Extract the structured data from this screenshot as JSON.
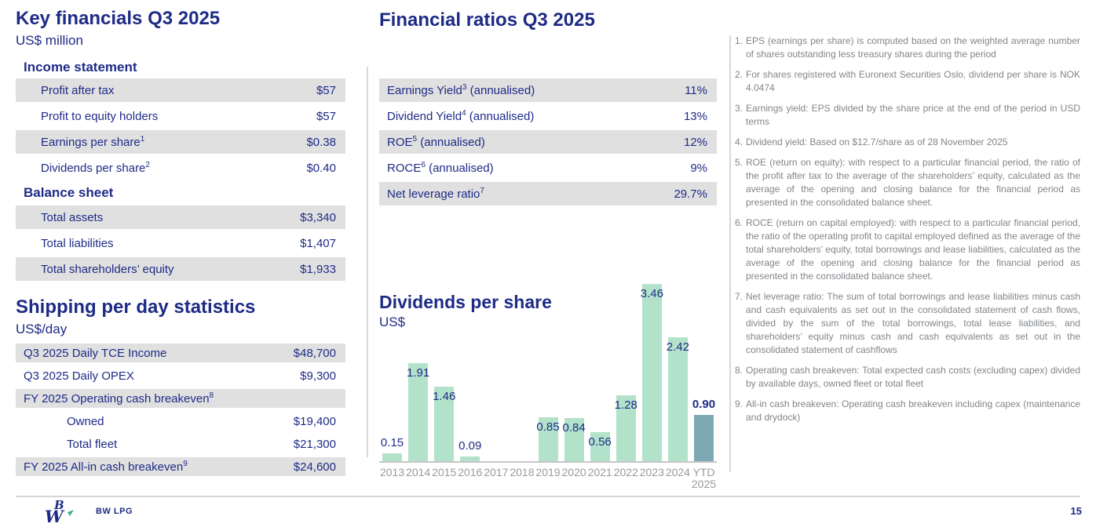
{
  "page": {
    "number": "15"
  },
  "colors": {
    "navy": "#1e2b86",
    "bar_green": "#b3e2cb",
    "bar_slate": "#7da9b2",
    "row_grey": "#e0e0e0"
  },
  "left": {
    "title": "Key financials Q3 2025",
    "unit": "US$ million",
    "sections": [
      {
        "heading": "Income statement",
        "rows": [
          {
            "label": "Profit after tax",
            "sup": "",
            "value": "$57",
            "shaded": true,
            "indent": 1
          },
          {
            "label": "Profit to equity holders",
            "sup": "",
            "value": "$57",
            "shaded": false,
            "indent": 1
          },
          {
            "label": "Earnings per share",
            "sup": "1",
            "value": "$0.38",
            "shaded": true,
            "indent": 1
          },
          {
            "label": "Dividends per share",
            "sup": "2",
            "value": "$0.40",
            "shaded": false,
            "indent": 1
          }
        ]
      },
      {
        "heading": "Balance sheet",
        "rows": [
          {
            "label": "Total assets",
            "sup": "",
            "value": "$3,340",
            "shaded": true,
            "indent": 1
          },
          {
            "label": "Total liabilities",
            "sup": "",
            "value": "$1,407",
            "shaded": false,
            "indent": 1
          },
          {
            "label": "Total shareholders’ equity",
            "sup": "",
            "value": "$1,933",
            "shaded": true,
            "indent": 1
          }
        ]
      }
    ],
    "shipping": {
      "title": "Shipping per day statistics",
      "unit": "US$/day",
      "rows": [
        {
          "label": "Q3 2025 Daily TCE Income",
          "sup": "",
          "value": "$48,700",
          "shaded": true,
          "indent": 0
        },
        {
          "label": "Q3 2025 Daily OPEX",
          "sup": "",
          "value": "$9,300",
          "shaded": false,
          "indent": 0
        },
        {
          "label": "FY 2025 Operating cash breakeven",
          "sup": "8",
          "value": "",
          "shaded": true,
          "indent": 0
        },
        {
          "label": "Owned",
          "sup": "",
          "value": "$19,400",
          "shaded": false,
          "indent": 2
        },
        {
          "label": "Total fleet",
          "sup": "",
          "value": "$21,300",
          "shaded": false,
          "indent": 2
        },
        {
          "label": "FY 2025 All-in cash breakeven",
          "sup": "9",
          "value": "$24,600",
          "shaded": true,
          "indent": 0
        }
      ]
    }
  },
  "ratios": {
    "title": "Financial ratios Q3 2025",
    "rows": [
      {
        "label": "Earnings Yield",
        "sup": "3",
        "suffix": " (annualised)",
        "value": "11%",
        "shaded": true,
        "indent": 0
      },
      {
        "label": "Dividend Yield",
        "sup": "4",
        "suffix": " (annualised)",
        "value": "13%",
        "shaded": false,
        "indent": 0
      },
      {
        "label": "ROE",
        "sup": "5",
        "suffix": " (annualised)",
        "value": "12%",
        "shaded": true,
        "indent": 0
      },
      {
        "label": "ROCE",
        "sup": "6",
        "suffix": " (annualised)",
        "value": "9%",
        "shaded": false,
        "indent": 0
      },
      {
        "label": "Net leverage ratio",
        "sup": "7",
        "suffix": "",
        "value": "29.7%",
        "shaded": true,
        "indent": 0
      }
    ]
  },
  "chart_data": {
    "type": "bar",
    "title": "Dividends per share",
    "ylabel": "US$",
    "categories": [
      "2013",
      "2014",
      "2015",
      "2016",
      "2017",
      "2018",
      "2019",
      "2020",
      "2021",
      "2022",
      "2023",
      "2024",
      "YTD\n2025"
    ],
    "values": [
      0.15,
      1.91,
      1.46,
      0.09,
      null,
      null,
      0.85,
      0.84,
      0.56,
      1.28,
      3.46,
      2.42,
      0.9
    ],
    "labels": [
      "0.15",
      "1.91",
      "1.46",
      "0.09",
      "",
      "",
      "0.85",
      "0.84",
      "0.56",
      "1.28",
      "3.46",
      "2.42",
      "0.90"
    ],
    "highlight_index": 12,
    "bar_color": "#b3e2cb",
    "highlight_color": "#7da9b2",
    "ylim": [
      0,
      3.6
    ],
    "grid": false,
    "legend": "none"
  },
  "footnotes": [
    {
      "num": "1.",
      "text": "EPS (earnings per share) is computed based on the weighted average number of shares outstanding less treasury shares during the period"
    },
    {
      "num": "2.",
      "text": "For shares registered with Euronext Securities Oslo, dividend per share is NOK 4.0474"
    },
    {
      "num": "3.",
      "text": "Earnings yield: EPS divided by the share price at the end of the period in USD terms"
    },
    {
      "num": "4.",
      "text": "Dividend yield: Based on $12.7/share as of 28 November 2025"
    },
    {
      "num": "5.",
      "text": "ROE (return on equity): with respect to a particular financial period, the ratio of the profit after tax to the average of the shareholders’ equity, calculated as the average of the opening and closing balance for the financial period as presented in the consolidated balance sheet."
    },
    {
      "num": "6.",
      "text": "ROCE (return on capital employed): with respect to a particular financial period, the ratio of the operating profit to capital employed defined as the average of the total shareholders’ equity, total borrowings and lease liabilities, calculated as the average of the opening and closing balance for the financial period as presented in the consolidated balance sheet."
    },
    {
      "num": "7.",
      "text": "Net leverage ratio: The sum of total borrowings and lease liabilities minus cash and cash equivalents as set out in the consolidated statement of cash flows, divided by the sum of the total borrowings, total lease liabilities, and shareholders’ equity minus cash and cash equivalents as set out in the consolidated statement of cashflows"
    },
    {
      "num": "8.",
      "text": "Operating cash breakeven: Total expected cash costs (excluding capex) divided by available days, owned fleet or total fleet"
    },
    {
      "num": "9.",
      "text": "All-in cash breakeven: Operating cash breakeven including capex (maintenance and drydock)"
    }
  ],
  "footer": {
    "logo_text": "BW LPG"
  }
}
